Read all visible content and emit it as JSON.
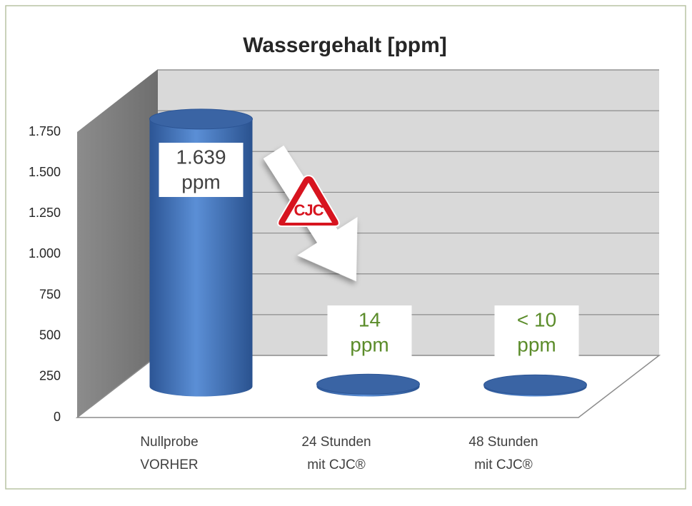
{
  "chart_data": {
    "type": "cylinder",
    "title": "Wassergehalt [ppm]",
    "categories": [
      [
        "Nullprobe",
        "VORHER"
      ],
      [
        "24 Stunden",
        "mit CJC®"
      ],
      [
        "48 Stunden",
        "mit CJC®"
      ]
    ],
    "values": [
      1639,
      14,
      10
    ],
    "value_labels": [
      [
        "1.639",
        "ppm"
      ],
      [
        "14",
        "ppm"
      ],
      [
        "< 10",
        "ppm"
      ]
    ],
    "value_label_colors": [
      "#404040",
      "#5b8c2a",
      "#5b8c2a"
    ],
    "color": "#3c6db3",
    "ylim": [
      0,
      1750
    ],
    "yticks": [
      0,
      250,
      500,
      750,
      {
        "value": 1000,
        "label": "1.000"
      },
      {
        "value": 1250,
        "label": "1.250"
      },
      {
        "value": 1500,
        "label": "1.500"
      },
      {
        "value": 1750,
        "label": "1.750"
      }
    ],
    "grid": true,
    "annotation": "CJC"
  }
}
